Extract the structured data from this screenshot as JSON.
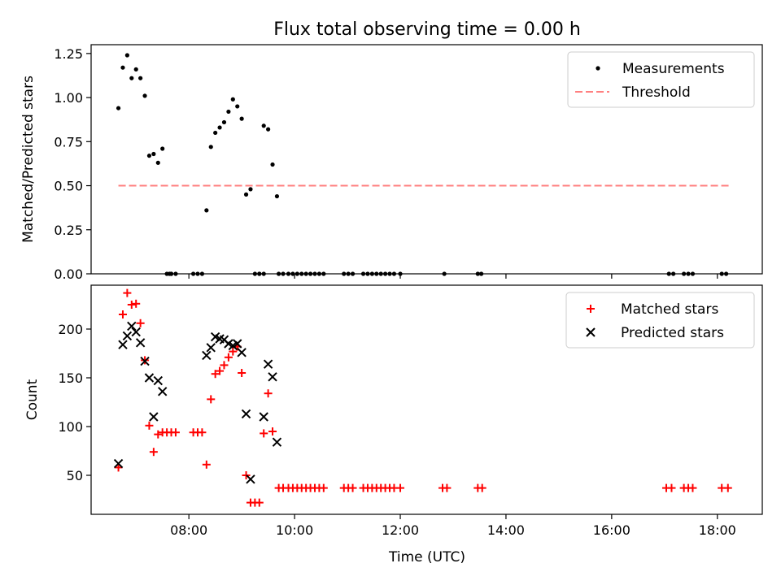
{
  "chart_data": [
    {
      "type": "scatter",
      "title": "Flux total observing time = 0.00 h",
      "xlabel": "",
      "ylabel": "Matched/Predicted stars",
      "xlim_hours": [
        6.15,
        18.85
      ],
      "ylim": [
        0,
        1.3
      ],
      "y_ticks": [
        0.0,
        0.25,
        0.5,
        0.75,
        1.0,
        1.25
      ],
      "y_tick_labels": [
        "0.00",
        "0.25",
        "0.50",
        "0.75",
        "1.00",
        "1.25"
      ],
      "x_tick_hours": [
        8,
        10,
        12,
        14,
        16,
        18
      ],
      "grid": false,
      "legend_position": "top-right",
      "legend": [
        "Measurements",
        "Threshold"
      ],
      "threshold": {
        "name": "Threshold",
        "y": 0.5,
        "x_range": [
          "06:40",
          "18:15"
        ],
        "color": "#ff8080"
      },
      "series": [
        {
          "name": "Measurements",
          "color": "#000000",
          "x": [
            "06:40",
            "06:45",
            "06:50",
            "06:55",
            "07:00",
            "07:05",
            "07:10",
            "07:15",
            "07:20",
            "07:25",
            "07:30",
            "07:35",
            "07:38",
            "07:40",
            "08:20",
            "08:25",
            "08:30",
            "08:35",
            "08:40",
            "08:45",
            "08:50",
            "08:55",
            "09:00",
            "09:05",
            "09:10",
            "09:15",
            "09:20",
            "09:25",
            "09:30",
            "09:35",
            "09:40",
            "07:40",
            "07:45",
            "08:05",
            "08:10",
            "08:15",
            "09:20",
            "09:25",
            "09:42",
            "09:47",
            "09:53",
            "09:58",
            "10:03",
            "10:08",
            "10:13",
            "10:18",
            "10:23",
            "10:28",
            "10:33",
            "10:56",
            "11:01",
            "11:06",
            "11:18",
            "11:23",
            "11:28",
            "11:33",
            "11:38",
            "11:43",
            "11:48",
            "11:53",
            "12:00",
            "12:50",
            "13:28",
            "13:32",
            "17:05",
            "17:10",
            "17:22",
            "17:27",
            "17:32",
            "18:05",
            "18:10"
          ],
          "y": [
            0.94,
            1.17,
            1.24,
            1.11,
            1.16,
            1.11,
            1.01,
            0.67,
            0.68,
            0.63,
            0.71,
            0.0,
            0.0,
            0.0,
            0.36,
            0.72,
            0.8,
            0.83,
            0.86,
            0.92,
            0.99,
            0.95,
            0.88,
            0.45,
            0.48,
            0.0,
            0.0,
            0.84,
            0.82,
            0.62,
            0.44,
            0.0,
            0.0,
            0.0,
            0.0,
            0.0,
            0.0,
            0.0,
            0.0,
            0.0,
            0.0,
            0.0,
            0.0,
            0.0,
            0.0,
            0.0,
            0.0,
            0.0,
            0.0,
            0.0,
            0.0,
            0.0,
            0.0,
            0.0,
            0.0,
            0.0,
            0.0,
            0.0,
            0.0,
            0.0,
            0.0,
            0.0,
            0.0,
            0.0,
            0.0,
            0.0,
            0.0,
            0.0,
            0.0,
            0.0,
            0.0
          ]
        }
      ]
    },
    {
      "type": "scatter",
      "title": "",
      "xlabel": "Time (UTC)",
      "ylabel": "Count",
      "xlim_hours": [
        6.15,
        18.85
      ],
      "ylim": [
        10,
        245
      ],
      "y_ticks": [
        50,
        100,
        150,
        200
      ],
      "y_tick_labels": [
        "50",
        "100",
        "150",
        "200"
      ],
      "x_tick_hours": [
        8,
        10,
        12,
        14,
        16,
        18
      ],
      "x_tick_labels": [
        "08:00",
        "10:00",
        "12:00",
        "14:00",
        "16:00",
        "18:00"
      ],
      "grid": false,
      "legend_position": "top-right",
      "legend": [
        "Matched stars",
        "Predicted stars"
      ],
      "series": [
        {
          "name": "Matched stars",
          "marker": "plus",
          "color": "#ff0000",
          "x": [
            "06:40",
            "06:45",
            "06:50",
            "06:55",
            "07:00",
            "07:05",
            "07:10",
            "07:15",
            "07:20",
            "07:25",
            "07:30",
            "07:35",
            "07:40",
            "07:45",
            "08:05",
            "08:10",
            "08:15",
            "08:20",
            "08:25",
            "08:30",
            "08:35",
            "08:40",
            "08:45",
            "08:50",
            "08:55",
            "09:00",
            "09:05",
            "09:10",
            "09:15",
            "09:20",
            "09:25",
            "09:30",
            "09:35",
            "09:42",
            "09:47",
            "09:53",
            "09:58",
            "10:03",
            "10:08",
            "10:13",
            "10:18",
            "10:23",
            "10:28",
            "10:33",
            "10:56",
            "11:01",
            "11:06",
            "11:18",
            "11:23",
            "11:28",
            "11:33",
            "11:38",
            "11:43",
            "11:48",
            "11:53",
            "12:00",
            "12:48",
            "12:53",
            "13:28",
            "13:33",
            "17:02",
            "17:08",
            "17:22",
            "17:27",
            "17:32",
            "18:05",
            "18:12"
          ],
          "y": [
            58,
            215,
            237,
            225,
            226,
            206,
            168,
            101,
            74,
            92,
            94,
            94,
            94,
            94,
            94,
            94,
            94,
            61,
            128,
            154,
            157,
            163,
            171,
            177,
            182,
            155,
            50,
            22,
            22,
            22,
            93,
            134,
            95,
            37,
            37,
            37,
            37,
            37,
            37,
            37,
            37,
            37,
            37,
            37,
            37,
            37,
            37,
            37,
            37,
            37,
            37,
            37,
            37,
            37,
            37,
            37,
            37,
            37,
            37,
            37,
            37,
            37,
            37,
            37,
            37,
            37,
            37
          ]
        },
        {
          "name": "Predicted stars",
          "marker": "x",
          "color": "#000000",
          "x": [
            "06:40",
            "06:45",
            "06:50",
            "06:55",
            "07:00",
            "07:05",
            "07:10",
            "07:15",
            "07:20",
            "07:25",
            "07:30",
            "08:20",
            "08:25",
            "08:30",
            "08:35",
            "08:40",
            "08:45",
            "08:50",
            "08:55",
            "09:00",
            "09:05",
            "09:10",
            "09:25",
            "09:30",
            "09:35",
            "09:40"
          ],
          "y": [
            62,
            184,
            193,
            203,
            197,
            186,
            167,
            150,
            110,
            147,
            136,
            173,
            181,
            192,
            190,
            189,
            185,
            183,
            185,
            176,
            113,
            46,
            110,
            164,
            151,
            84
          ]
        }
      ]
    }
  ]
}
